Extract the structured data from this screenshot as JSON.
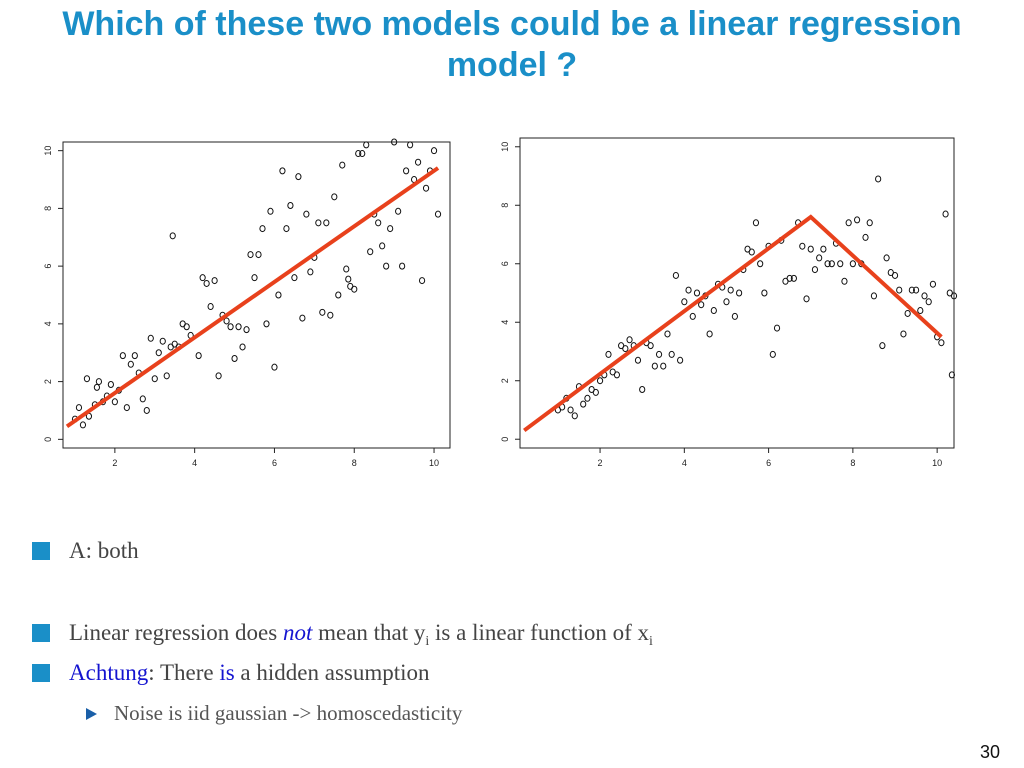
{
  "slide": {
    "title": "Which of these two models could be a linear regression model ?",
    "page_number": "30"
  },
  "bullets": {
    "b1": "A: both",
    "b2": {
      "pre": "Linear regression does ",
      "emph": "not",
      "mid": " mean that y",
      "sub1": "i",
      "post": " is a linear function of x",
      "sub2": "i"
    },
    "b3": {
      "word": "Achtung",
      "mid": ": There ",
      "emph": "is",
      "post": " a hidden assumption"
    },
    "b4": "Noise is iid gaussian -> homoscedasticity"
  },
  "colors": {
    "title": "#1a8fc8",
    "bullet_square": "#1a8fc8",
    "fit_line": "#e8411c",
    "emphasis": "#1414d0"
  },
  "chart_data": [
    {
      "type": "scatter",
      "title": "",
      "xlabel": "",
      "ylabel": "",
      "xlim": [
        0.7,
        10.4
      ],
      "ylim": [
        -0.3,
        10.3
      ],
      "xticks": [
        "2",
        "4",
        "6",
        "8",
        "10"
      ],
      "yticks": [
        "0",
        "2",
        "4",
        "6",
        "8",
        "10"
      ],
      "points": [
        [
          1.0,
          0.7
        ],
        [
          1.1,
          1.1
        ],
        [
          1.2,
          0.5
        ],
        [
          1.3,
          2.1
        ],
        [
          1.35,
          0.8
        ],
        [
          1.5,
          1.2
        ],
        [
          1.55,
          1.8
        ],
        [
          1.6,
          2.0
        ],
        [
          1.7,
          1.3
        ],
        [
          1.8,
          1.5
        ],
        [
          1.9,
          1.9
        ],
        [
          2.0,
          1.3
        ],
        [
          2.1,
          1.7
        ],
        [
          2.2,
          2.9
        ],
        [
          2.3,
          1.1
        ],
        [
          2.4,
          2.6
        ],
        [
          2.5,
          2.9
        ],
        [
          2.6,
          2.3
        ],
        [
          2.7,
          1.4
        ],
        [
          2.8,
          1.0
        ],
        [
          2.9,
          3.5
        ],
        [
          3.0,
          2.1
        ],
        [
          3.1,
          3.0
        ],
        [
          3.2,
          3.4
        ],
        [
          3.3,
          2.2
        ],
        [
          3.4,
          3.2
        ],
        [
          3.5,
          3.3
        ],
        [
          3.6,
          3.2
        ],
        [
          3.7,
          4.0
        ],
        [
          3.8,
          3.9
        ],
        [
          3.9,
          3.6
        ],
        [
          4.1,
          2.9
        ],
        [
          4.2,
          5.6
        ],
        [
          4.3,
          5.4
        ],
        [
          4.4,
          4.6
        ],
        [
          4.5,
          5.5
        ],
        [
          4.6,
          2.2
        ],
        [
          4.7,
          4.3
        ],
        [
          4.8,
          4.1
        ],
        [
          4.9,
          3.9
        ],
        [
          5.0,
          2.8
        ],
        [
          5.1,
          3.9
        ],
        [
          5.2,
          3.2
        ],
        [
          5.3,
          3.8
        ],
        [
          5.4,
          6.4
        ],
        [
          5.5,
          5.6
        ],
        [
          5.6,
          6.4
        ],
        [
          5.7,
          7.3
        ],
        [
          5.8,
          4.0
        ],
        [
          5.9,
          7.9
        ],
        [
          6.0,
          2.5
        ],
        [
          6.1,
          5.0
        ],
        [
          6.2,
          9.3
        ],
        [
          6.3,
          7.3
        ],
        [
          6.4,
          8.1
        ],
        [
          6.5,
          5.6
        ],
        [
          6.6,
          9.1
        ],
        [
          6.7,
          4.2
        ],
        [
          6.8,
          7.8
        ],
        [
          6.9,
          5.8
        ],
        [
          7.0,
          6.3
        ],
        [
          7.1,
          7.5
        ],
        [
          7.2,
          4.4
        ],
        [
          7.3,
          7.5
        ],
        [
          7.4,
          4.3
        ],
        [
          7.5,
          8.4
        ],
        [
          7.6,
          5.0
        ],
        [
          7.7,
          9.5
        ],
        [
          7.8,
          5.9
        ],
        [
          7.9,
          5.3
        ],
        [
          8.0,
          5.2
        ],
        [
          8.1,
          9.9
        ],
        [
          8.2,
          9.9
        ],
        [
          8.3,
          10.2
        ],
        [
          8.4,
          6.5
        ],
        [
          8.5,
          7.8
        ],
        [
          8.6,
          7.5
        ],
        [
          8.7,
          6.7
        ],
        [
          8.8,
          6.0
        ],
        [
          8.9,
          7.3
        ],
        [
          9.0,
          10.3
        ],
        [
          9.1,
          7.9
        ],
        [
          9.2,
          6.0
        ],
        [
          9.3,
          9.3
        ],
        [
          9.4,
          10.2
        ],
        [
          9.5,
          9.0
        ],
        [
          9.6,
          9.6
        ],
        [
          9.7,
          5.5
        ],
        [
          9.8,
          8.7
        ],
        [
          9.9,
          9.3
        ],
        [
          10.0,
          10.0
        ],
        [
          10.1,
          7.8
        ],
        [
          7.85,
          5.55
        ],
        [
          3.45,
          7.05
        ]
      ],
      "fit_line": [
        [
          0.8,
          0.45
        ],
        [
          10.1,
          9.4
        ]
      ]
    },
    {
      "type": "scatter",
      "title": "",
      "xlabel": "",
      "ylabel": "",
      "xlim": [
        0.1,
        10.4
      ],
      "ylim": [
        -0.3,
        10.3
      ],
      "xticks": [
        "2",
        "4",
        "6",
        "8",
        "10"
      ],
      "yticks": [
        "0",
        "2",
        "4",
        "6",
        "8",
        "10"
      ],
      "points": [
        [
          1.0,
          1.0
        ],
        [
          1.1,
          1.1
        ],
        [
          1.2,
          1.4
        ],
        [
          1.3,
          1.0
        ],
        [
          1.4,
          0.8
        ],
        [
          1.5,
          1.8
        ],
        [
          1.6,
          1.2
        ],
        [
          1.7,
          1.4
        ],
        [
          1.8,
          1.7
        ],
        [
          1.9,
          1.6
        ],
        [
          2.0,
          2.0
        ],
        [
          2.1,
          2.2
        ],
        [
          2.2,
          2.9
        ],
        [
          2.3,
          2.3
        ],
        [
          2.4,
          2.2
        ],
        [
          2.5,
          3.2
        ],
        [
          2.6,
          3.1
        ],
        [
          2.7,
          3.4
        ],
        [
          2.8,
          3.2
        ],
        [
          2.9,
          2.7
        ],
        [
          3.0,
          1.7
        ],
        [
          3.1,
          3.3
        ],
        [
          3.2,
          3.2
        ],
        [
          3.3,
          2.5
        ],
        [
          3.4,
          2.9
        ],
        [
          3.5,
          2.5
        ],
        [
          3.6,
          3.6
        ],
        [
          3.7,
          2.9
        ],
        [
          3.8,
          5.6
        ],
        [
          3.9,
          2.7
        ],
        [
          4.0,
          4.7
        ],
        [
          4.1,
          5.1
        ],
        [
          4.2,
          4.2
        ],
        [
          4.3,
          5.0
        ],
        [
          4.4,
          4.6
        ],
        [
          4.5,
          4.9
        ],
        [
          4.6,
          3.6
        ],
        [
          4.7,
          4.4
        ],
        [
          4.8,
          5.3
        ],
        [
          4.9,
          5.2
        ],
        [
          5.0,
          4.7
        ],
        [
          5.1,
          5.1
        ],
        [
          5.2,
          4.2
        ],
        [
          5.3,
          5.0
        ],
        [
          5.4,
          5.8
        ],
        [
          5.5,
          6.5
        ],
        [
          5.6,
          6.4
        ],
        [
          5.7,
          7.4
        ],
        [
          5.8,
          6.0
        ],
        [
          5.9,
          5.0
        ],
        [
          6.0,
          6.6
        ],
        [
          6.1,
          2.9
        ],
        [
          6.2,
          3.8
        ],
        [
          6.3,
          6.8
        ],
        [
          6.4,
          5.4
        ],
        [
          6.5,
          5.5
        ],
        [
          6.6,
          5.5
        ],
        [
          6.7,
          7.4
        ],
        [
          6.8,
          6.6
        ],
        [
          6.9,
          4.8
        ],
        [
          7.0,
          6.5
        ],
        [
          7.1,
          5.8
        ],
        [
          7.2,
          6.2
        ],
        [
          7.3,
          6.5
        ],
        [
          7.4,
          6.0
        ],
        [
          7.5,
          6.0
        ],
        [
          7.6,
          6.7
        ],
        [
          7.7,
          6.0
        ],
        [
          7.8,
          5.4
        ],
        [
          7.9,
          7.4
        ],
        [
          8.0,
          6.0
        ],
        [
          8.1,
          7.5
        ],
        [
          8.2,
          6.0
        ],
        [
          8.3,
          6.9
        ],
        [
          8.4,
          7.4
        ],
        [
          8.5,
          4.9
        ],
        [
          8.6,
          8.9
        ],
        [
          8.7,
          3.2
        ],
        [
          8.8,
          6.2
        ],
        [
          8.9,
          5.7
        ],
        [
          9.0,
          5.6
        ],
        [
          9.1,
          5.1
        ],
        [
          9.2,
          3.6
        ],
        [
          9.3,
          4.3
        ],
        [
          9.4,
          5.1
        ],
        [
          9.5,
          5.1
        ],
        [
          9.6,
          4.4
        ],
        [
          9.7,
          4.9
        ],
        [
          9.8,
          4.7
        ],
        [
          9.9,
          5.3
        ],
        [
          10.0,
          3.5
        ],
        [
          10.1,
          3.3
        ],
        [
          10.2,
          7.7
        ],
        [
          10.3,
          5.0
        ],
        [
          10.35,
          2.2
        ],
        [
          10.4,
          4.9
        ]
      ],
      "fit_line": [
        [
          0.2,
          0.3
        ],
        [
          7.0,
          7.6
        ],
        [
          10.1,
          3.5
        ]
      ]
    }
  ]
}
